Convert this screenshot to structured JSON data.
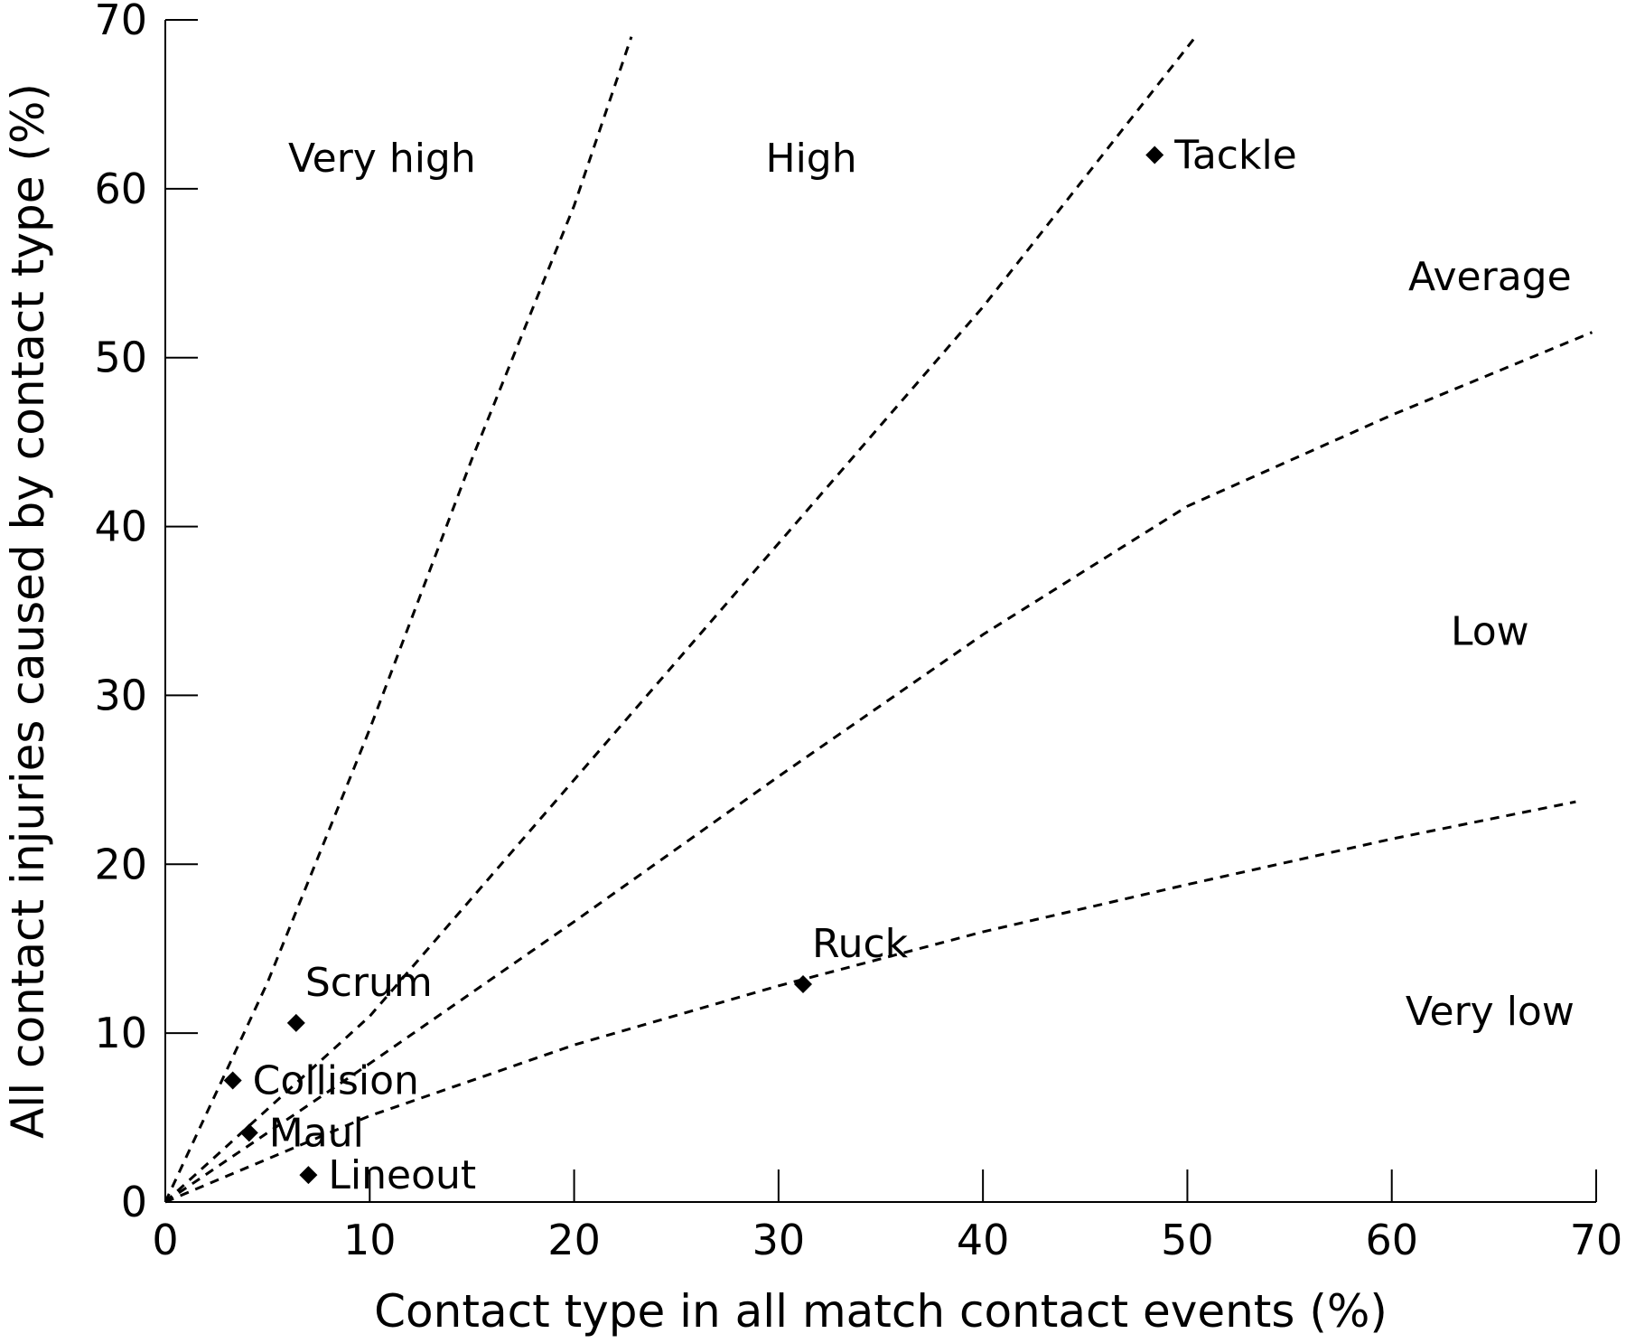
{
  "chart_data": {
    "type": "scatter",
    "title": "",
    "xlabel": "Contact type in all match contact events (%)",
    "ylabel": "All contact injuries caused by contact type (%)",
    "xlim": [
      0,
      70
    ],
    "ylim": [
      0,
      70
    ],
    "xticks": [
      "0",
      "10",
      "20",
      "30",
      "40",
      "50",
      "60",
      "70"
    ],
    "yticks": [
      "0",
      "10",
      "20",
      "30",
      "40",
      "50",
      "60",
      "70"
    ],
    "grid": false,
    "marker_color": "#000000",
    "points": [
      {
        "label": "Tackle",
        "x": 48.4,
        "y": 62.0
      },
      {
        "label": "Ruck",
        "x": 31.2,
        "y": 12.9
      },
      {
        "label": "Scrum",
        "x": 6.4,
        "y": 10.6
      },
      {
        "label": "Collision",
        "x": 3.3,
        "y": 7.2
      },
      {
        "label": "Maul",
        "x": 4.1,
        "y": 4.1
      },
      {
        "label": "Lineout",
        "x": 7.0,
        "y": 1.6
      }
    ],
    "reference_lines": [
      {
        "points": [
          [
            0,
            0
          ],
          [
            5,
            13
          ],
          [
            10,
            28
          ],
          [
            15,
            44
          ],
          [
            20,
            59
          ],
          [
            22.8,
            69
          ]
        ]
      },
      {
        "points": [
          [
            0,
            0
          ],
          [
            10,
            11
          ],
          [
            20,
            25
          ],
          [
            30,
            39
          ],
          [
            40,
            53
          ],
          [
            50.4,
            69
          ]
        ]
      },
      {
        "points": [
          [
            0,
            0
          ],
          [
            10,
            8.2
          ],
          [
            20,
            16.6
          ],
          [
            30,
            25.2
          ],
          [
            40,
            33.6
          ],
          [
            50,
            41.2
          ],
          [
            60,
            46.6
          ],
          [
            69.8,
            51.5
          ]
        ]
      },
      {
        "points": [
          [
            0,
            0
          ],
          [
            10,
            5.1
          ],
          [
            20,
            9.3
          ],
          [
            30,
            12.8
          ],
          [
            40,
            16.0
          ],
          [
            50,
            18.8
          ],
          [
            60,
            21.5
          ],
          [
            69,
            23.7
          ]
        ]
      }
    ],
    "zones": [
      {
        "label": "Very high",
        "x": 10.6,
        "y": 61.8
      },
      {
        "label": "High",
        "x": 31.6,
        "y": 61.8
      },
      {
        "label": "Average",
        "x": 64.8,
        "y": 54.8
      },
      {
        "label": "Low",
        "x": 64.8,
        "y": 33.8
      },
      {
        "label": "Very low",
        "x": 64.8,
        "y": 11.3
      }
    ]
  }
}
